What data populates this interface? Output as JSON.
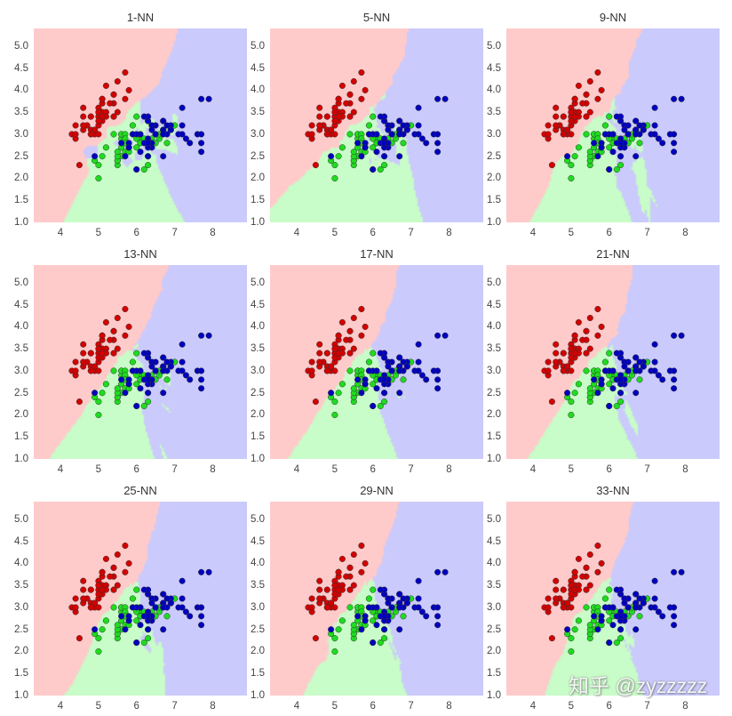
{
  "chart_data": {
    "type": "scatter",
    "subplots": [
      {
        "title": "1-NN",
        "k": 1
      },
      {
        "title": "5-NN",
        "k": 5
      },
      {
        "title": "9-NN",
        "k": 9
      },
      {
        "title": "13-NN",
        "k": 13
      },
      {
        "title": "17-NN",
        "k": 17
      },
      {
        "title": "21-NN",
        "k": 21
      },
      {
        "title": "25-NN",
        "k": 25
      },
      {
        "title": "29-NN",
        "k": 29
      },
      {
        "title": "33-NN",
        "k": 33
      }
    ],
    "xlim": [
      3.3,
      8.9
    ],
    "ylim": [
      1.0,
      5.4
    ],
    "x_ticks": [
      "4",
      "5",
      "6",
      "7",
      "8"
    ],
    "y_ticks": [
      "1.0",
      "1.5",
      "2.0",
      "2.5",
      "3.0",
      "3.5",
      "4.0",
      "4.5",
      "5.0"
    ],
    "grid": false,
    "background": "decision regions of k-nearest-neighbour classifier",
    "region_colors": [
      "#FFCACA",
      "#C8FCC8",
      "#CACAFC"
    ],
    "point_colors": [
      "#D40000",
      "#1EDC1E",
      "#0000C0"
    ],
    "series": [
      {
        "points": [
          [
            5.1,
            3.5
          ],
          [
            4.9,
            3.0
          ],
          [
            4.7,
            3.2
          ],
          [
            4.6,
            3.1
          ],
          [
            5.0,
            3.6
          ],
          [
            5.4,
            3.9
          ],
          [
            4.6,
            3.4
          ],
          [
            5.0,
            3.4
          ],
          [
            4.4,
            2.9
          ],
          [
            4.9,
            3.1
          ],
          [
            5.4,
            3.7
          ],
          [
            4.8,
            3.4
          ],
          [
            4.8,
            3.0
          ],
          [
            4.3,
            3.0
          ],
          [
            5.8,
            4.0
          ],
          [
            5.7,
            4.4
          ],
          [
            5.4,
            3.9
          ],
          [
            5.1,
            3.5
          ],
          [
            5.7,
            3.8
          ],
          [
            5.1,
            3.8
          ],
          [
            5.4,
            3.4
          ],
          [
            5.1,
            3.7
          ],
          [
            4.6,
            3.6
          ],
          [
            5.1,
            3.3
          ],
          [
            4.8,
            3.4
          ],
          [
            5.0,
            3.0
          ],
          [
            5.0,
            3.4
          ],
          [
            5.2,
            3.5
          ],
          [
            5.2,
            3.4
          ],
          [
            4.7,
            3.2
          ],
          [
            4.8,
            3.1
          ],
          [
            5.4,
            3.4
          ],
          [
            5.2,
            4.1
          ],
          [
            5.5,
            4.2
          ],
          [
            4.9,
            3.1
          ],
          [
            5.0,
            3.2
          ],
          [
            5.5,
            3.5
          ],
          [
            4.9,
            3.1
          ],
          [
            4.4,
            3.0
          ],
          [
            5.1,
            3.4
          ],
          [
            5.0,
            3.5
          ],
          [
            4.5,
            2.3
          ],
          [
            4.4,
            3.2
          ],
          [
            5.0,
            3.5
          ],
          [
            5.1,
            3.8
          ],
          [
            4.8,
            3.0
          ],
          [
            5.1,
            3.8
          ],
          [
            4.6,
            3.2
          ],
          [
            5.3,
            3.7
          ],
          [
            5.0,
            3.3
          ]
        ]
      },
      {
        "points": [
          [
            7.0,
            3.2
          ],
          [
            6.4,
            3.2
          ],
          [
            6.9,
            3.1
          ],
          [
            5.5,
            2.3
          ],
          [
            6.5,
            2.8
          ],
          [
            5.7,
            2.8
          ],
          [
            6.3,
            3.3
          ],
          [
            4.9,
            2.4
          ],
          [
            6.6,
            2.9
          ],
          [
            5.2,
            2.7
          ],
          [
            5.0,
            2.0
          ],
          [
            5.9,
            3.0
          ],
          [
            6.0,
            2.2
          ],
          [
            6.1,
            2.9
          ],
          [
            5.6,
            2.9
          ],
          [
            6.7,
            3.1
          ],
          [
            5.6,
            3.0
          ],
          [
            5.8,
            2.7
          ],
          [
            6.2,
            2.2
          ],
          [
            5.6,
            2.5
          ],
          [
            5.9,
            3.2
          ],
          [
            6.1,
            2.8
          ],
          [
            6.3,
            2.5
          ],
          [
            6.1,
            2.8
          ],
          [
            6.4,
            2.9
          ],
          [
            6.6,
            3.0
          ],
          [
            6.8,
            2.8
          ],
          [
            6.7,
            3.0
          ],
          [
            6.0,
            2.9
          ],
          [
            5.7,
            2.6
          ],
          [
            5.5,
            2.4
          ],
          [
            5.5,
            2.4
          ],
          [
            5.8,
            2.7
          ],
          [
            6.0,
            2.7
          ],
          [
            5.4,
            3.0
          ],
          [
            6.0,
            3.4
          ],
          [
            6.7,
            3.1
          ],
          [
            6.3,
            2.3
          ],
          [
            5.6,
            3.0
          ],
          [
            5.5,
            2.5
          ],
          [
            5.5,
            2.6
          ],
          [
            6.1,
            3.0
          ],
          [
            5.8,
            2.6
          ],
          [
            5.0,
            2.3
          ],
          [
            5.6,
            2.7
          ],
          [
            5.7,
            3.0
          ],
          [
            5.7,
            2.9
          ],
          [
            6.2,
            2.9
          ],
          [
            5.1,
            2.5
          ],
          [
            5.7,
            2.8
          ]
        ]
      },
      {
        "points": [
          [
            6.3,
            3.3
          ],
          [
            5.8,
            2.7
          ],
          [
            7.1,
            3.0
          ],
          [
            6.3,
            2.9
          ],
          [
            6.5,
            3.0
          ],
          [
            7.6,
            3.0
          ],
          [
            4.9,
            2.5
          ],
          [
            7.3,
            2.9
          ],
          [
            6.7,
            2.5
          ],
          [
            7.2,
            3.6
          ],
          [
            6.5,
            3.2
          ],
          [
            6.4,
            2.7
          ],
          [
            6.8,
            3.0
          ],
          [
            5.7,
            2.5
          ],
          [
            5.8,
            2.8
          ],
          [
            6.4,
            3.2
          ],
          [
            6.5,
            3.0
          ],
          [
            7.7,
            3.8
          ],
          [
            7.7,
            2.6
          ],
          [
            6.0,
            2.2
          ],
          [
            6.9,
            3.2
          ],
          [
            5.6,
            2.8
          ],
          [
            7.7,
            2.8
          ],
          [
            6.3,
            2.7
          ],
          [
            6.7,
            3.3
          ],
          [
            7.2,
            3.2
          ],
          [
            6.2,
            2.8
          ],
          [
            6.1,
            3.0
          ],
          [
            6.4,
            2.8
          ],
          [
            7.2,
            3.0
          ],
          [
            7.4,
            2.8
          ],
          [
            7.9,
            3.8
          ],
          [
            6.4,
            2.8
          ],
          [
            6.3,
            2.8
          ],
          [
            6.1,
            2.6
          ],
          [
            7.7,
            3.0
          ],
          [
            6.3,
            3.4
          ],
          [
            6.4,
            3.1
          ],
          [
            6.0,
            3.0
          ],
          [
            6.9,
            3.1
          ],
          [
            6.7,
            3.1
          ],
          [
            6.9,
            3.1
          ],
          [
            5.8,
            2.7
          ],
          [
            6.8,
            3.2
          ],
          [
            6.7,
            3.3
          ],
          [
            6.7,
            3.0
          ],
          [
            6.3,
            2.5
          ],
          [
            6.5,
            3.0
          ],
          [
            6.2,
            3.4
          ],
          [
            5.9,
            3.0
          ]
        ]
      }
    ]
  },
  "watermark": "知乎 @zyzzzzz"
}
